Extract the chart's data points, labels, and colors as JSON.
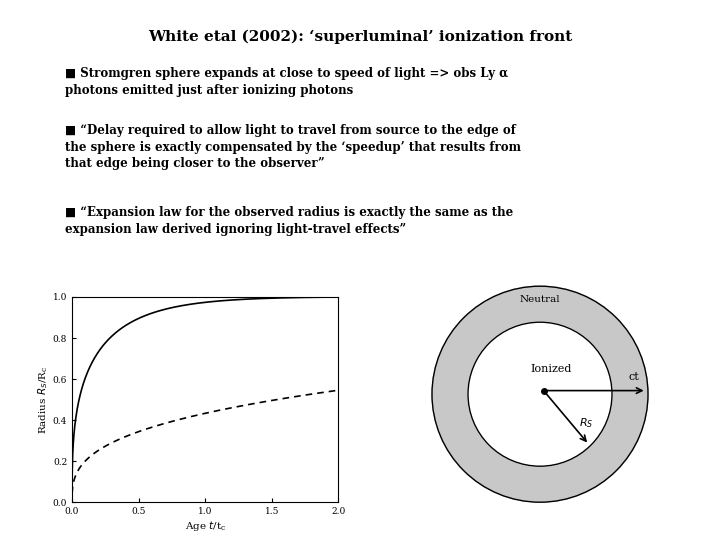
{
  "title": "White etal (2002): ‘superluminal’ ionization front",
  "bullet1": "■ Stromgren sphere expands at close to speed of light => obs Ly α\nphotons emitted just after ionizing photons",
  "bullet2": "■ “Delay required to allow light to travel from source to the edge of\nthe sphere is exactly compensated by the ‘speedup’ that results from\nthat edge being closer to the observer”",
  "bullet3": "■ “Expansion law for the observed radius is exactly the same as the\nexpansion law derived ignoring light-travel effects”",
  "bg_color": "#ffffff",
  "text_color": "#000000",
  "plot_bg": "#ffffff",
  "solid_line_color": "#000000",
  "dashed_line_color": "#000000",
  "diagram_gray": "#c8c8c8",
  "diagram_bg": "#ffffff"
}
